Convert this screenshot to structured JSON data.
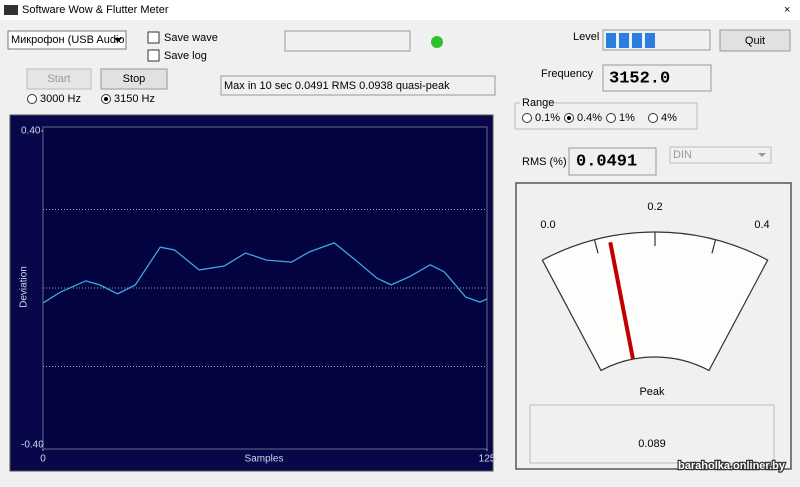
{
  "window": {
    "title": "Software Wow & Flutter Meter"
  },
  "controls": {
    "device": "Микрофон (USB Audio",
    "save_wave": "Save wave",
    "save_log": "Save log",
    "start": "Start",
    "stop": "Stop",
    "quit": "Quit",
    "frequency_options": [
      {
        "label": "3000 Hz",
        "selected": false
      },
      {
        "label": "3150 Hz",
        "selected": true
      }
    ],
    "status": "Max in 10 sec 0.0491 RMS 0.0938 quasi-peak",
    "level_label": "Level",
    "frequency_label": "Frequency",
    "frequency": "3152.0",
    "range_label": "Range",
    "range_options": [
      {
        "label": "0.1%",
        "selected": false
      },
      {
        "label": "0.4%",
        "selected": true
      },
      {
        "label": "1%",
        "selected": false
      },
      {
        "label": "4%",
        "selected": false
      }
    ],
    "rms_label": "RMS (%)",
    "rms": "0.0491",
    "weighting": "DIN"
  },
  "graph": {
    "type": "line",
    "x_label": "Samples",
    "y_label": "Deviation",
    "xlim": [
      0,
      125
    ],
    "xticks": [
      0,
      125
    ],
    "ylim": [
      -0.4,
      0.4
    ],
    "yticks": [
      {
        "value": 0.4,
        "label": "0.40"
      },
      {
        "value": -0.4,
        "label": "-0.40"
      }
    ],
    "grid_lines": [
      0.2,
      0,
      -0.2
    ],
    "color": "#3aa8e0",
    "x": [
      0,
      5,
      12,
      16,
      21,
      26,
      33,
      37,
      44,
      51,
      57,
      63,
      70,
      75,
      82,
      88,
      94,
      98,
      103,
      109,
      113,
      119,
      123,
      125
    ],
    "values": [
      -0.038,
      -0.01,
      0.018,
      0.008,
      -0.015,
      0.008,
      0.104,
      0.097,
      0.046,
      0.056,
      0.089,
      0.071,
      0.066,
      0.092,
      0.115,
      0.071,
      0.025,
      0.008,
      0.028,
      0.059,
      0.041,
      -0.023,
      -0.036,
      -0.028
    ]
  },
  "meter": {
    "ticks": [
      {
        "value": 0,
        "label": "0.0"
      },
      0.2,
      0.4
    ],
    "value": 0.049,
    "peak_label": "Peak",
    "peak": "0.089"
  },
  "watermark": "baraholka.onliner.by"
}
